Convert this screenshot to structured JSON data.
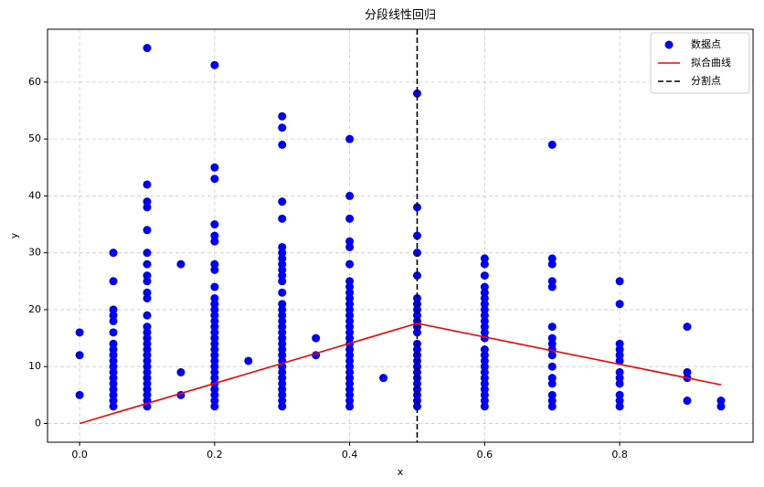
{
  "chart_data": {
    "type": "scatter",
    "title": "分段线性回归",
    "x_label": "x",
    "y_label": "y",
    "xlim": [
      -0.0475,
      0.9975
    ],
    "ylim": [
      -3.3,
      69.3
    ],
    "xticks": [
      {
        "value": 0,
        "label": "0.0"
      },
      0.2,
      0.4,
      0.6,
      0.8
    ],
    "yticks": [
      0,
      10,
      20,
      30,
      40,
      50,
      60
    ],
    "grid": true,
    "legend": "upper right",
    "series": [
      {
        "name": "数据点",
        "type": "scatter",
        "color": "#0000ff",
        "x": [
          0,
          0,
          0,
          0.05,
          0.05,
          0.05,
          0.05,
          0.05,
          0.05,
          0.05,
          0.05,
          0.05,
          0.05,
          0.05,
          0.05,
          0.05,
          0.05,
          0.05,
          0.05,
          0.05,
          0.05,
          0.1,
          0.1,
          0.1,
          0.1,
          0.1,
          0.1,
          0.1,
          0.1,
          0.1,
          0.1,
          0.1,
          0.1,
          0.1,
          0.1,
          0.1,
          0.1,
          0.1,
          0.1,
          0.1,
          0.1,
          0.1,
          0.1,
          0.1,
          0.1,
          0.1,
          0.1,
          0.1,
          0.15,
          0.15,
          0.15,
          0.2,
          0.2,
          0.2,
          0.2,
          0.2,
          0.2,
          0.2,
          0.2,
          0.2,
          0.2,
          0.2,
          0.2,
          0.2,
          0.2,
          0.2,
          0.2,
          0.2,
          0.2,
          0.2,
          0.2,
          0.2,
          0.2,
          0.2,
          0.2,
          0.2,
          0.2,
          0.2,
          0.2,
          0.2,
          0.25,
          0.3,
          0.3,
          0.3,
          0.3,
          0.3,
          0.3,
          0.3,
          0.3,
          0.3,
          0.3,
          0.3,
          0.3,
          0.3,
          0.3,
          0.3,
          0.3,
          0.3,
          0.3,
          0.3,
          0.3,
          0.3,
          0.3,
          0.3,
          0.3,
          0.3,
          0.3,
          0.3,
          0.3,
          0.3,
          0.3,
          0.3,
          0.3,
          0.35,
          0.35,
          0.4,
          0.4,
          0.4,
          0.4,
          0.4,
          0.4,
          0.4,
          0.4,
          0.4,
          0.4,
          0.4,
          0.4,
          0.4,
          0.4,
          0.4,
          0.4,
          0.4,
          0.4,
          0.4,
          0.4,
          0.4,
          0.4,
          0.4,
          0.4,
          0.4,
          0.4,
          0.4,
          0.4,
          0.4,
          0.45,
          0.5,
          0.5,
          0.5,
          0.5,
          0.5,
          0.5,
          0.5,
          0.5,
          0.5,
          0.5,
          0.5,
          0.5,
          0.5,
          0.5,
          0.5,
          0.5,
          0.5,
          0.5,
          0.5,
          0.5,
          0.5,
          0.5,
          0.5,
          0.5,
          0.6,
          0.6,
          0.6,
          0.6,
          0.6,
          0.6,
          0.6,
          0.6,
          0.6,
          0.6,
          0.6,
          0.6,
          0.6,
          0.6,
          0.6,
          0.6,
          0.6,
          0.6,
          0.6,
          0.6,
          0.6,
          0.6,
          0.6,
          0.6,
          0.7,
          0.7,
          0.7,
          0.7,
          0.7,
          0.7,
          0.7,
          0.7,
          0.7,
          0.7,
          0.7,
          0.7,
          0.7,
          0.7,
          0.7,
          0.7,
          0.8,
          0.8,
          0.8,
          0.8,
          0.8,
          0.8,
          0.8,
          0.8,
          0.8,
          0.8,
          0.8,
          0.8,
          0.9,
          0.9,
          0.9,
          0.9,
          0.95,
          0.95
        ],
        "values": [
          16,
          12,
          5,
          30,
          25,
          20,
          19,
          18,
          16,
          14,
          13,
          12,
          11,
          10,
          9,
          8,
          7,
          6,
          5,
          4,
          3,
          66,
          42,
          39,
          38,
          34,
          30,
          28,
          26,
          25,
          23,
          22,
          19,
          17,
          16,
          15,
          14,
          13,
          12,
          11,
          10,
          9,
          8,
          7,
          6,
          5,
          4,
          3,
          28,
          9,
          5,
          63,
          45,
          43,
          35,
          33,
          32,
          28,
          27,
          24,
          22,
          21,
          20,
          19,
          18,
          17,
          16,
          15,
          14,
          13,
          12,
          11,
          10,
          9,
          8,
          7,
          6,
          5,
          4,
          3,
          11,
          54,
          52,
          49,
          39,
          36,
          31,
          30,
          29,
          28,
          27,
          26,
          25,
          23,
          21,
          20,
          19,
          18,
          17,
          16,
          15,
          14,
          13,
          12,
          11,
          10,
          9,
          8,
          7,
          6,
          5,
          4,
          3,
          15,
          12,
          50,
          40,
          36,
          32,
          31,
          28,
          25,
          24,
          23,
          22,
          21,
          20,
          19,
          18,
          17,
          16,
          15,
          14,
          13,
          12,
          11,
          10,
          9,
          8,
          7,
          6,
          5,
          4,
          3,
          8,
          58,
          38,
          33,
          30,
          26,
          22,
          21,
          20,
          19,
          18,
          17,
          16,
          14,
          13,
          12,
          11,
          10,
          9,
          8,
          7,
          6,
          5,
          4,
          3,
          29,
          28,
          26,
          24,
          23,
          22,
          21,
          20,
          19,
          18,
          17,
          16,
          15,
          13,
          12,
          11,
          10,
          9,
          8,
          7,
          6,
          5,
          4,
          3,
          49,
          29,
          28,
          25,
          24,
          17,
          15,
          14,
          13,
          12,
          10,
          8,
          7,
          5,
          4,
          3,
          25,
          21,
          14,
          13,
          12,
          11,
          9,
          8,
          7,
          5,
          4,
          3,
          17,
          9,
          8,
          4,
          4,
          3
        ]
      },
      {
        "name": "拟合曲线",
        "type": "line",
        "color": "#ff0000",
        "x": [
          0,
          0.5,
          0.95
        ],
        "values": [
          0,
          17.6,
          6.8
        ]
      },
      {
        "name": "分割点",
        "type": "vline",
        "color": "#000000",
        "x": [
          0.5
        ]
      }
    ]
  }
}
